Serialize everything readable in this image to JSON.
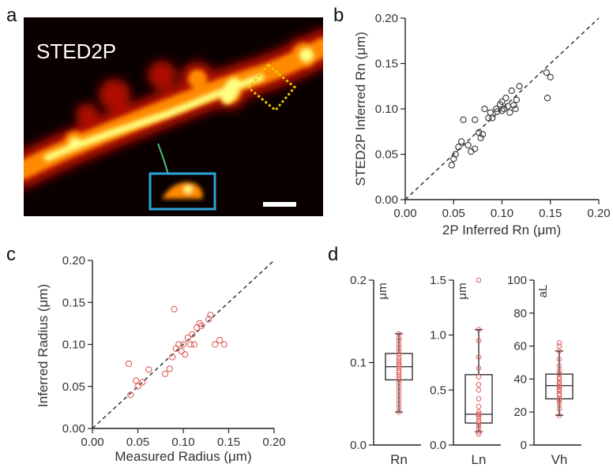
{
  "panels": {
    "a": "a",
    "b": "b",
    "c": "c",
    "d": "d"
  },
  "micrograph": {
    "title": "STED2P",
    "colors": {
      "background": "#0a0000",
      "dendrite_core": "#ffff80",
      "dendrite_mid": "#ff8a00",
      "dendrite_edge": "#b01000",
      "inset_box": "#2aa6d8",
      "roi_box": "#e8c800",
      "scale_bar": "#ffffff",
      "neck_line": "#44c070"
    }
  },
  "chart_data": [
    {
      "id": "b",
      "type": "scatter",
      "xlabel": "2P Inferred Rn (μm)",
      "ylabel": "STED2P Inferred Rn (μm)",
      "xlim": [
        0,
        0.2
      ],
      "ylim": [
        0,
        0.2
      ],
      "xticks": [
        "0.00",
        "0.05",
        "0.10",
        "0.15",
        "0.20"
      ],
      "yticks": [
        "0.00",
        "0.05",
        "0.10",
        "0.15",
        "0.20"
      ],
      "identity_line": true,
      "marker": "open-circle",
      "color": "#333333",
      "points": [
        [
          0.048,
          0.038
        ],
        [
          0.05,
          0.045
        ],
        [
          0.052,
          0.05
        ],
        [
          0.055,
          0.058
        ],
        [
          0.058,
          0.064
        ],
        [
          0.06,
          0.088
        ],
        [
          0.065,
          0.06
        ],
        [
          0.068,
          0.053
        ],
        [
          0.072,
          0.056
        ],
        [
          0.072,
          0.088
        ],
        [
          0.076,
          0.074
        ],
        [
          0.078,
          0.068
        ],
        [
          0.082,
          0.1
        ],
        [
          0.088,
          0.096
        ],
        [
          0.09,
          0.09
        ],
        [
          0.094,
          0.1
        ],
        [
          0.095,
          0.097
        ],
        [
          0.098,
          0.105
        ],
        [
          0.1,
          0.098
        ],
        [
          0.1,
          0.108
        ],
        [
          0.102,
          0.1
        ],
        [
          0.104,
          0.112
        ],
        [
          0.106,
          0.103
        ],
        [
          0.108,
          0.096
        ],
        [
          0.11,
          0.12
        ],
        [
          0.112,
          0.104
        ],
        [
          0.114,
          0.1
        ],
        [
          0.115,
          0.11
        ],
        [
          0.118,
          0.125
        ],
        [
          0.146,
          0.14
        ],
        [
          0.147,
          0.112
        ],
        [
          0.15,
          0.135
        ],
        [
          0.086,
          0.09
        ],
        [
          0.08,
          0.072
        ]
      ]
    },
    {
      "id": "c",
      "type": "scatter",
      "xlabel": "Measured Radius (μm)",
      "ylabel": "Inferred Radius (μm)",
      "xlim": [
        0,
        0.2
      ],
      "ylim": [
        0,
        0.2
      ],
      "xticks": [
        "0.00",
        "0.05",
        "0.10",
        "0.15",
        "0.20"
      ],
      "yticks": [
        "0.00",
        "0.05",
        "0.10",
        "0.15",
        "0.20"
      ],
      "identity_line": true,
      "marker": "open-circle",
      "color": "#e06060",
      "points": [
        [
          0.04,
          0.077
        ],
        [
          0.042,
          0.04
        ],
        [
          0.048,
          0.057
        ],
        [
          0.05,
          0.05
        ],
        [
          0.055,
          0.055
        ],
        [
          0.062,
          0.07
        ],
        [
          0.08,
          0.065
        ],
        [
          0.085,
          0.071
        ],
        [
          0.088,
          0.085
        ],
        [
          0.09,
          0.142
        ],
        [
          0.092,
          0.095
        ],
        [
          0.095,
          0.1
        ],
        [
          0.098,
          0.092
        ],
        [
          0.1,
          0.1
        ],
        [
          0.102,
          0.088
        ],
        [
          0.105,
          0.108
        ],
        [
          0.108,
          0.1
        ],
        [
          0.11,
          0.112
        ],
        [
          0.112,
          0.1
        ],
        [
          0.115,
          0.12
        ],
        [
          0.118,
          0.125
        ],
        [
          0.12,
          0.122
        ],
        [
          0.128,
          0.13
        ],
        [
          0.13,
          0.135
        ],
        [
          0.135,
          0.1
        ],
        [
          0.14,
          0.105
        ],
        [
          0.145,
          0.1
        ]
      ]
    },
    {
      "id": "d",
      "type": "boxplot",
      "color": "#e06060",
      "boxes": [
        {
          "name": "Rn",
          "unit": "μm",
          "ylim": [
            0,
            0.2
          ],
          "yticks": [
            "0.0",
            "0.1",
            "0.2"
          ],
          "whisker_low": 0.04,
          "q1": 0.079,
          "median": 0.095,
          "q3": 0.111,
          "whisker_high": 0.135,
          "points": [
            0.04,
            0.045,
            0.05,
            0.055,
            0.06,
            0.065,
            0.07,
            0.075,
            0.079,
            0.082,
            0.085,
            0.088,
            0.09,
            0.093,
            0.095,
            0.097,
            0.1,
            0.103,
            0.106,
            0.11,
            0.114,
            0.118,
            0.122,
            0.127,
            0.13,
            0.135
          ]
        },
        {
          "name": "Ln",
          "unit": "μm",
          "ylim": [
            0,
            1.5
          ],
          "yticks": [
            "0.0",
            "0.5",
            "1.0",
            "1.5"
          ],
          "whisker_low": 0.12,
          "q1": 0.2,
          "median": 0.28,
          "q3": 0.64,
          "whisker_high": 1.05,
          "points": [
            0.1,
            0.12,
            0.15,
            0.18,
            0.2,
            0.22,
            0.25,
            0.27,
            0.28,
            0.3,
            0.35,
            0.42,
            0.5,
            0.55,
            0.62,
            0.7,
            0.8,
            0.95,
            1.05,
            1.5
          ]
        },
        {
          "name": "Vh",
          "unit": "aL",
          "ylim": [
            0,
            100
          ],
          "yticks": [
            "0",
            "20",
            "40",
            "60",
            "80",
            "100"
          ],
          "whisker_low": 18,
          "q1": 28,
          "median": 36,
          "q3": 43,
          "whisker_high": 57,
          "points": [
            18,
            22,
            25,
            27,
            28,
            30,
            31,
            33,
            34,
            35,
            36,
            37,
            38,
            40,
            41,
            43,
            45,
            48,
            52,
            57,
            60,
            62
          ]
        }
      ]
    }
  ]
}
